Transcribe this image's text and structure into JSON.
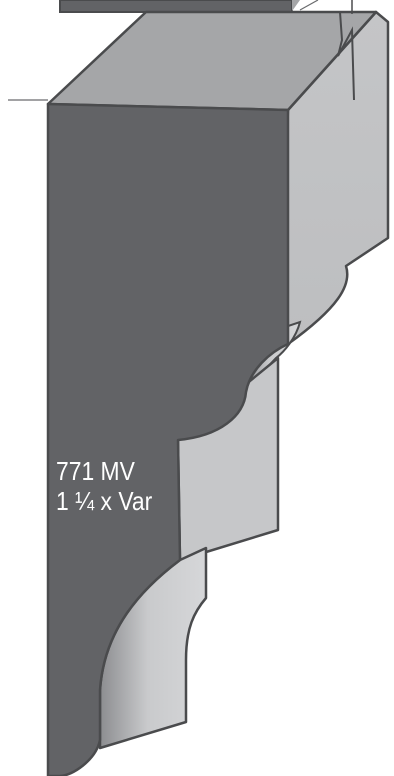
{
  "profile": {
    "code": "771 MV",
    "dimensions": "1 ¼ x Var"
  },
  "colors": {
    "face_dark": "#626366",
    "face_top": "#a5a6a8",
    "face_side": "#c6c7c9",
    "outline": "#4a4b4d",
    "curve_light": "#d2d3d5",
    "background": "#ffffff"
  }
}
